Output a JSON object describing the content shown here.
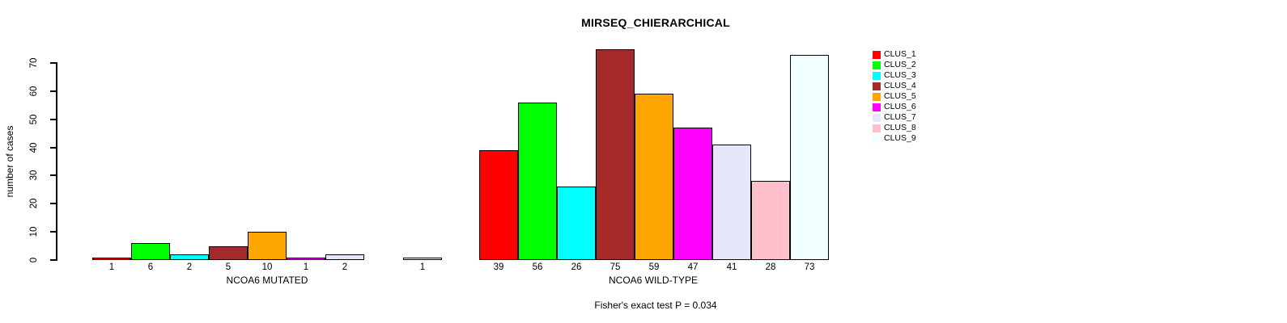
{
  "chart_data": {
    "type": "bar",
    "title": "MIRSEQ_CHIERARCHICAL",
    "ylabel": "number of cases",
    "xlabel": "",
    "categories": [
      "NCOA6 MUTATED",
      "NCOA6 WILD-TYPE"
    ],
    "series": [
      {
        "name": "CLUS_1",
        "color": "#FF0000",
        "values": [
          1,
          39
        ]
      },
      {
        "name": "CLUS_2",
        "color": "#00FF00",
        "values": [
          6,
          56
        ]
      },
      {
        "name": "CLUS_3",
        "color": "#00FFFF",
        "values": [
          2,
          26
        ]
      },
      {
        "name": "CLUS_4",
        "color": "#A52A2A",
        "values": [
          5,
          75
        ]
      },
      {
        "name": "CLUS_5",
        "color": "#FFA500",
        "values": [
          10,
          59
        ]
      },
      {
        "name": "CLUS_6",
        "color": "#FF00FF",
        "values": [
          1,
          47
        ]
      },
      {
        "name": "CLUS_7",
        "color": "#E6E6FA",
        "values": [
          2,
          41
        ]
      },
      {
        "name": "CLUS_8",
        "color": "#FFC0CB",
        "values": [
          0,
          28
        ]
      },
      {
        "name": "CLUS_9",
        "color": "#F0FFFF",
        "values": [
          1,
          73
        ]
      }
    ],
    "group_bar_labels": [
      [
        "1",
        "6",
        "2",
        "5",
        "10",
        "1",
        "2",
        "",
        "1"
      ],
      [
        "39",
        "56",
        "26",
        "75",
        "59",
        "47",
        "41",
        "28",
        "73"
      ]
    ],
    "ylim": [
      0,
      70
    ],
    "yticks": [
      0,
      10,
      20,
      30,
      40,
      50,
      60,
      70
    ],
    "grid": false,
    "legend_position": "right",
    "annotation": "Fisher's exact test P = 0.034"
  }
}
